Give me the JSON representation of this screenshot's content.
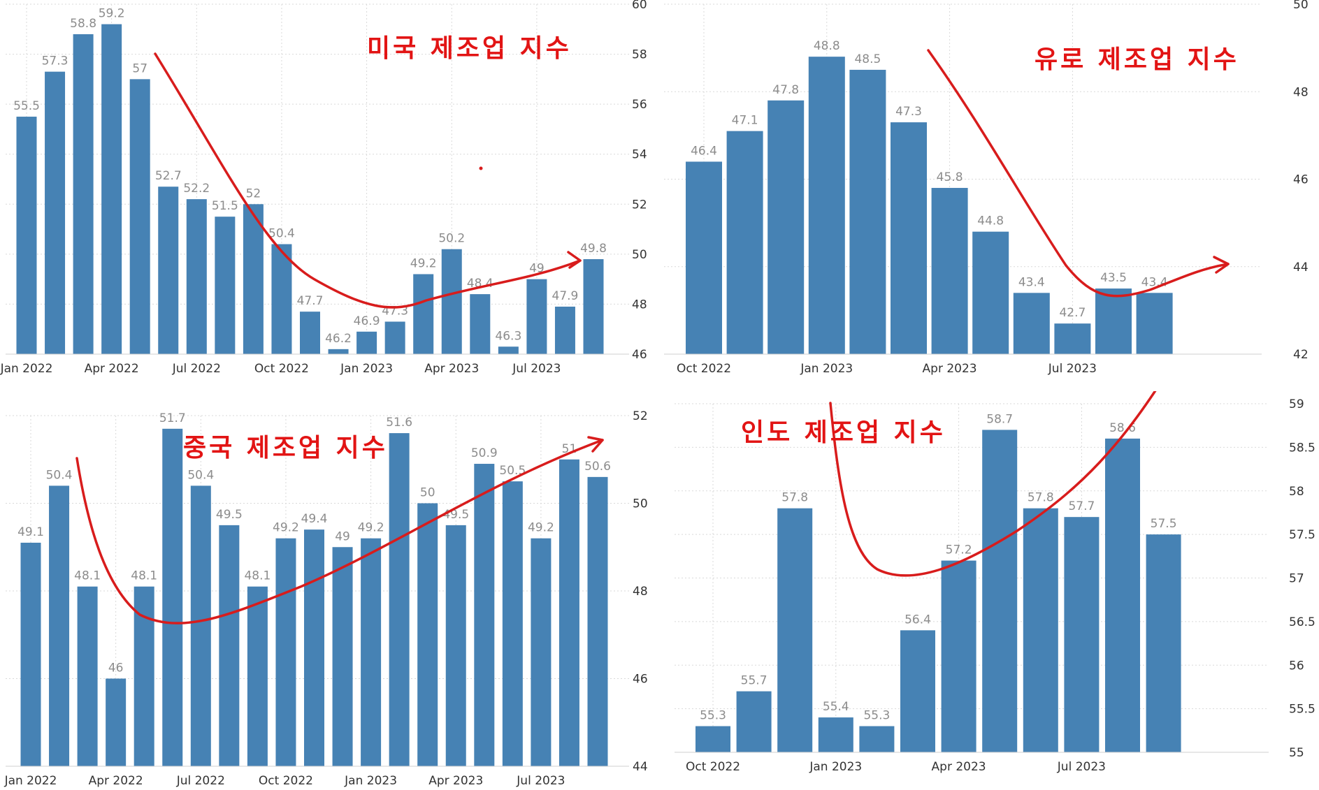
{
  "colors": {
    "bar": "#4682b4",
    "trend": "#d81c1c",
    "annotation": "#e21414",
    "value_label": "#8c8c8c",
    "grid": "#d9d9d9"
  },
  "chart_data": [
    {
      "id": "us",
      "type": "bar",
      "annotation": "미국 제조업 지수",
      "categories": [
        "Jan 2022",
        "Feb 2022",
        "Mar 2022",
        "Apr 2022",
        "May 2022",
        "Jun 2022",
        "Jul 2022",
        "Aug 2022",
        "Sep 2022",
        "Oct 2022",
        "Nov 2022",
        "Dec 2022",
        "Jan 2023",
        "Feb 2023",
        "Mar 2023",
        "Apr 2023",
        "May 2023",
        "Jun 2023",
        "Jul 2023",
        "Aug 2023",
        "Sep 2023"
      ],
      "values": [
        55.5,
        57.3,
        58.8,
        59.2,
        57,
        52.7,
        52.2,
        51.5,
        52,
        50.4,
        47.7,
        46.2,
        46.9,
        47.3,
        49.2,
        50.2,
        48.4,
        46.3,
        49,
        47.9,
        49.8
      ],
      "value_labels": [
        "55.5",
        "57.3",
        "58.8",
        "59.2",
        "57",
        "52.7",
        "52.2",
        "51.5",
        "52",
        "50.4",
        "47.7",
        "46.2",
        "46.9",
        "47.3",
        "49.2",
        "50.2",
        "48.4",
        "46.3",
        "49",
        "47.9",
        "49.8"
      ],
      "x_ticks": [
        "Jan 2022",
        "Apr 2022",
        "Jul 2022",
        "Oct 2022",
        "Jan 2023",
        "Apr 2023",
        "Jul 2023"
      ],
      "y_ticks": [
        "46",
        "48",
        "50",
        "52",
        "54",
        "56",
        "58",
        "60"
      ],
      "ylim": [
        46,
        60
      ],
      "grid": true
    },
    {
      "id": "euro",
      "type": "bar",
      "annotation": "유로 제조업 지수",
      "categories": [
        "Oct 2022",
        "Nov 2022",
        "Dec 2022",
        "Jan 2023",
        "Feb 2023",
        "Mar 2023",
        "Apr 2023",
        "May 2023",
        "Jun 2023",
        "Jul 2023",
        "Aug 2023",
        "Sep 2023"
      ],
      "values": [
        46.4,
        47.1,
        47.8,
        48.8,
        48.5,
        47.3,
        45.8,
        44.8,
        43.4,
        42.7,
        43.5,
        43.4
      ],
      "value_labels": [
        "46.4",
        "47.1",
        "47.8",
        "48.8",
        "48.5",
        "47.3",
        "45.8",
        "44.8",
        "43.4",
        "42.7",
        "43.5",
        "43.4"
      ],
      "x_ticks": [
        "Oct 2022",
        "Jan 2023",
        "Apr 2023",
        "Jul 2023"
      ],
      "y_ticks": [
        "42",
        "44",
        "46",
        "48",
        "50"
      ],
      "ylim": [
        42,
        50
      ],
      "grid": true
    },
    {
      "id": "china",
      "type": "bar",
      "annotation": "중국 제조업 지수",
      "categories": [
        "Jan 2022",
        "Feb 2022",
        "Mar 2022",
        "Apr 2022",
        "May 2022",
        "Jun 2022",
        "Jul 2022",
        "Aug 2022",
        "Sep 2022",
        "Oct 2022",
        "Nov 2022",
        "Dec 2022",
        "Jan 2023",
        "Feb 2023",
        "Mar 2023",
        "Apr 2023",
        "May 2023",
        "Jun 2023",
        "Jul 2023",
        "Aug 2023",
        "Sep 2023"
      ],
      "values": [
        49.1,
        50.4,
        48.1,
        46,
        48.1,
        51.7,
        50.4,
        49.5,
        48.1,
        49.2,
        49.4,
        49,
        49.2,
        51.6,
        50,
        49.5,
        50.9,
        50.5,
        49.2,
        51,
        50.6
      ],
      "value_labels": [
        "49.1",
        "50.4",
        "48.1",
        "46",
        "48.1",
        "51.7",
        "50.4",
        "49.5",
        "48.1",
        "49.2",
        "49.4",
        "49",
        "49.2",
        "51.6",
        "50",
        "49.5",
        "50.9",
        "50.5",
        "49.2",
        "51",
        "50.6"
      ],
      "x_ticks": [
        "Jan 2022",
        "Apr 2022",
        "Jul 2022",
        "Oct 2022",
        "Jan 2023",
        "Apr 2023",
        "Jul 2023"
      ],
      "y_ticks": [
        "44",
        "46",
        "48",
        "50",
        "52"
      ],
      "ylim": [
        44,
        52
      ],
      "grid": true
    },
    {
      "id": "india",
      "type": "bar",
      "annotation": "인도 제조업 지수",
      "categories": [
        "Oct 2022",
        "Nov 2022",
        "Dec 2022",
        "Jan 2023",
        "Feb 2023",
        "Mar 2023",
        "Apr 2023",
        "May 2023",
        "Jun 2023",
        "Jul 2023",
        "Aug 2023",
        "Sep 2023"
      ],
      "values": [
        55.3,
        55.7,
        57.8,
        55.4,
        55.3,
        56.4,
        57.2,
        58.7,
        57.8,
        57.7,
        58.6,
        57.5
      ],
      "value_labels": [
        "55.3",
        "55.7",
        "57.8",
        "55.4",
        "55.3",
        "56.4",
        "57.2",
        "58.7",
        "57.8",
        "57.7",
        "58.6",
        "57.5"
      ],
      "x_ticks": [
        "Oct 2022",
        "Jan 2023",
        "Apr 2023",
        "Jul 2023"
      ],
      "y_ticks": [
        "55",
        "55.5",
        "56",
        "56.5",
        "57",
        "57.5",
        "58",
        "58.5",
        "59"
      ],
      "ylim": [
        55,
        59
      ],
      "grid": true
    }
  ]
}
